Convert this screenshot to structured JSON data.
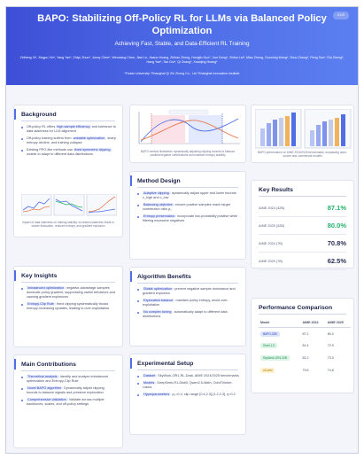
{
  "header": {
    "title": "BAPO: Stabilizing Off-Policy RL for LLMs via Balanced Policy Optimization",
    "subtitle": "Achieving Fast, Stable, and Data-Efficient RL Training",
    "authors": "Zhiheng Xi*, Xingpu Xin*, Yang Yan*, Zhiyu Zhou*, Junny Chen*, Wenxiang Chen, Jiaxi Lu, Jiasun Huang, Zhihao Zheng, Honglin Guo*, Xun Deng*, Zhihui Lai*, Miao Zheng, Guoming Wang*, Shuo Zhang*, Peng Sun*, Rui Zheng*, Hang Yan*, Tao Gui*, Qi Zhang*, Xuanjing Huang*",
    "affiliations": "*Fudan University  *Shanghai Qi Zhi Zhong Co., Ltd  *Shanghai Innovation Institute",
    "badge": "ICLR"
  },
  "background": {
    "title": "Background",
    "items": [
      {
        "pre": "Off-policy RL offers ",
        "hl": "high sample efficiency",
        "post": " and tolerance to data staleness for LLM alignment"
      },
      {
        "pre": "Off-policy training suffers from ",
        "hl": "unstable optimization",
        "post": ", sharp entropy decline, and training collapse"
      },
      {
        "pre": "Existing PPO-like methods use ",
        "hl": "fixed symmetric clipping",
        "post": ", unable to adapt to different data distributions"
      }
    ],
    "caption": "Impact of data staleness on training stability: increased staleness leads to slower fluctuation, reduced entropy, and gradient explosion"
  },
  "figure": {
    "caption": "BAPO method illustration: dynamically adjusting clipping bounds to balance positive/negative contributions and maintain entropy stability",
    "perf_caption": "BAPO performance on AIME 2024/2025 benchmarks, surpassing open-source and commercial models"
  },
  "method": {
    "title": "Method Design",
    "items": [
      {
        "hl": "Adaptive clipping",
        "post": ": dynamically adjust upper and lower bounds c_high and c_low"
      },
      {
        "hl": "Balancing objective",
        "post": ": ensure positive samples reach target contribution ratio ρ₀"
      },
      {
        "hl": "Entropy preservation",
        "post": ": incorporate low-probability positive while filtering excessive negatives"
      }
    ]
  },
  "key_results": {
    "title": "Key Results",
    "rows": [
      {
        "label": "AIME 2024 (32B)",
        "value": "87.1%",
        "color": "#22b36a"
      },
      {
        "label": "AIME 2025 (32B)",
        "value": "80.0%",
        "color": "#22b36a"
      },
      {
        "label": "AIME 2024 (7B)",
        "value": "70.8%",
        "color": "#2a3155"
      },
      {
        "label": "AIME 2025 (7B)",
        "value": "62.5%",
        "color": "#2a3155"
      }
    ]
  },
  "insights": {
    "title": "Key Insights",
    "items": [
      {
        "hl": "Imbalanced optimization",
        "post": ": negative-advantage samples dominate policy gradient, suppressing useful behaviors and causing gradient explosions"
      },
      {
        "hl": "Entropy-Clip Rule",
        "post": ": fixed clipping systematically blocks entropy-increasing updates, leading to over-exploitation"
      }
    ]
  },
  "benefits": {
    "title": "Algorithm Benefits",
    "items": [
      {
        "hl": "Stable optimization",
        "post": ": prevent negative sample dominance and gradient explosion"
      },
      {
        "hl": "Exploration balance",
        "post": ": maintain policy entropy, avoid over-exploitation"
      },
      {
        "hl": "No complex tuning",
        "post": ": automatically adapt to different data distributions"
      }
    ]
  },
  "contributions": {
    "title": "Main Contributions",
    "items": [
      {
        "hl": "Theoretical analysis",
        "post": ": Identify and analyze imbalanced optimization and Entropy-Clip Rule"
      },
      {
        "hl": "Novel BAPO algorithm",
        "post": ": Dynamically adjust clipping bounds to balance signals and preserve exploration"
      },
      {
        "hl": "Comprehensive validation",
        "post": ": Validate across multiple backbones, scales, and off-policy settings"
      }
    ]
  },
  "setup": {
    "title": "Experimental Setup",
    "items": [
      {
        "hl": "Dataset",
        "post": ": SkyWork-OR1-RL-Data, AIME 2024/2025 benchmarks"
      },
      {
        "hl": "Models",
        "post": ": DeepSeek-R1-Distill, Qwen2.5-Math, OctoThinker-Llama"
      },
      {
        "hl": "Hyperparameters",
        "post": ": ρ₀=0.4, clip range [0.6,2.0]-[1.2,2.3], η=0.2"
      }
    ]
  },
  "comparison": {
    "title": "Performance Comparison",
    "columns": [
      "Model",
      "AIME 2024",
      "AIME 2025"
    ],
    "rows": [
      {
        "model": "BAPO-32B",
        "a24": "87.1",
        "a25": "80.0",
        "tag_bg": "#dbe4ff",
        "tag_fg": "#3344aa"
      },
      {
        "model": "Seed-1.5",
        "a24": "81.4",
        "a25": "72.9",
        "tag_bg": "#dcf4e6",
        "tag_fg": "#1f8a50"
      },
      {
        "model": "SkyWork-OR1-32B",
        "a24": "82.2",
        "a25": "73.3",
        "tag_bg": "#dcf4e6",
        "tag_fg": "#1f8a50"
      },
      {
        "model": "o3-mini",
        "a24": "79.6",
        "a25": "74.8",
        "tag_bg": "#fff1cc",
        "tag_fg": "#9a6a00"
      }
    ]
  },
  "colors": {
    "accent": "#4f6ee8",
    "green": "#22b36a",
    "ink": "#1b2247"
  }
}
